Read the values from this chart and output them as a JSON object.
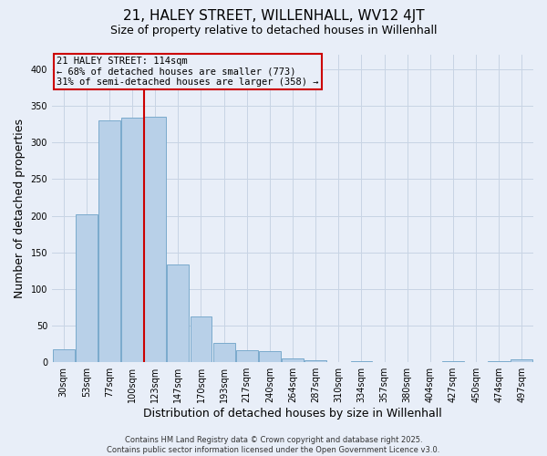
{
  "title_line1": "21, HALEY STREET, WILLENHALL, WV12 4JT",
  "title_line2": "Size of property relative to detached houses in Willenhall",
  "xlabel": "Distribution of detached houses by size in Willenhall",
  "ylabel": "Number of detached properties",
  "bar_color": "#b8d0e8",
  "bar_edgecolor": "#7aaacc",
  "grid_color": "#c8d4e4",
  "background_color": "#e8eef8",
  "annotation_box_color": "#cc0000",
  "annotation_line1": "21 HALEY STREET: 114sqm",
  "annotation_line2": "← 68% of detached houses are smaller (773)",
  "annotation_line3": "31% of semi-detached houses are larger (358) →",
  "categories": [
    "30sqm",
    "53sqm",
    "77sqm",
    "100sqm",
    "123sqm",
    "147sqm",
    "170sqm",
    "193sqm",
    "217sqm",
    "240sqm",
    "264sqm",
    "287sqm",
    "310sqm",
    "334sqm",
    "357sqm",
    "380sqm",
    "404sqm",
    "427sqm",
    "450sqm",
    "474sqm",
    "497sqm"
  ],
  "values": [
    18,
    202,
    330,
    334,
    335,
    133,
    62,
    27,
    16,
    15,
    5,
    3,
    0,
    1,
    0,
    0,
    0,
    1,
    0,
    1,
    4
  ],
  "property_bin_index": 4,
  "ylim": [
    0,
    420
  ],
  "yticks": [
    0,
    50,
    100,
    150,
    200,
    250,
    300,
    350,
    400
  ],
  "title_fontsize": 11,
  "subtitle_fontsize": 9,
  "label_fontsize": 9,
  "tick_fontsize": 7,
  "ann_fontsize": 7.5,
  "footer_text": "Contains HM Land Registry data © Crown copyright and database right 2025.\nContains public sector information licensed under the Open Government Licence v3.0."
}
